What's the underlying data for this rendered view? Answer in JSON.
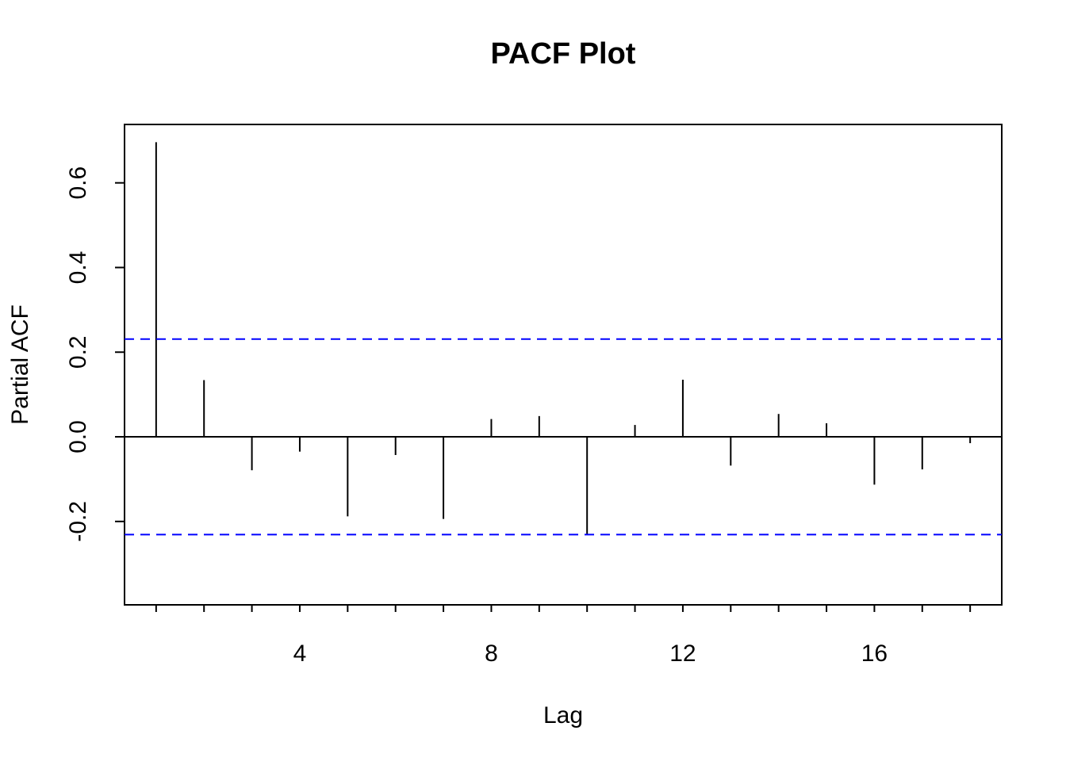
{
  "chart_data": {
    "type": "bar",
    "title": "PACF Plot",
    "xlabel": "Lag",
    "ylabel": "Partial ACF",
    "x": [
      1,
      2,
      3,
      4,
      5,
      6,
      7,
      8,
      9,
      10,
      11,
      12,
      13,
      14,
      15,
      16,
      17,
      18
    ],
    "values": [
      0.696,
      0.134,
      -0.079,
      -0.035,
      -0.188,
      -0.043,
      -0.194,
      0.042,
      0.049,
      -0.232,
      0.028,
      0.135,
      -0.068,
      0.054,
      0.032,
      -0.113,
      -0.077,
      -0.015
    ],
    "confidence_bound": 0.231,
    "xlim": [
      0.34,
      18.66
    ],
    "ylim": [
      -0.397,
      0.738
    ],
    "x_ticks": [
      1,
      2,
      3,
      4,
      5,
      6,
      7,
      8,
      9,
      10,
      11,
      12,
      13,
      14,
      15,
      16,
      17,
      18
    ],
    "x_tick_labels": [
      {
        "value": 4,
        "label": "4"
      },
      {
        "value": 8,
        "label": "8"
      },
      {
        "value": 12,
        "label": "12"
      },
      {
        "value": 16,
        "label": "16"
      }
    ],
    "y_tick_labels": [
      {
        "value": -0.2,
        "label": "-0.2"
      },
      {
        "value": 0.0,
        "label": "0.0"
      },
      {
        "value": 0.2,
        "label": "0.2"
      },
      {
        "value": 0.4,
        "label": "0.4"
      },
      {
        "value": 0.6,
        "label": "0.6"
      }
    ],
    "grid": false,
    "colors": {
      "bars": "#000000",
      "confidence": "#0000FF",
      "axes": "#000000"
    }
  }
}
